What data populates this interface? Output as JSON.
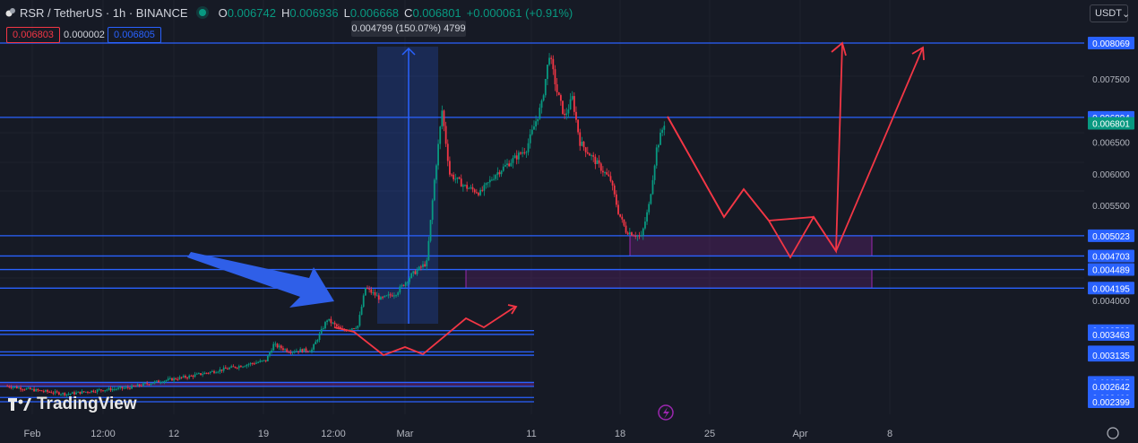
{
  "header": {
    "symbol": "RSR / TetherUS · 1h · BINANCE",
    "open_label": "O",
    "open": "0.006742",
    "high_label": "H",
    "high": "0.006936",
    "low_label": "L",
    "low": "0.006668",
    "close_label": "C",
    "close": "0.006801",
    "change": "+0.000061 (+0.91%)"
  },
  "bid_price": "0.006803",
  "spread": "0.000002",
  "ask_price": "0.006805",
  "measure_label": "0.004799 (150.07%) 4799",
  "currency_selector": "USDT",
  "logo_text": "TradingView",
  "colors": {
    "background": "#161a25",
    "up": "#089981",
    "down": "#f23645",
    "line": "#2962ff",
    "projection": "#f23645",
    "zone": "#9c27b0"
  },
  "chart_data": {
    "type": "candlestick",
    "symbol": "RSR/USDT",
    "interval": "1h",
    "exchange": "BINANCE",
    "x_ticks": [
      "Feb",
      "12:00",
      "12",
      "19",
      "12:00",
      "Mar",
      "11",
      "18",
      "25",
      "Apr",
      "8"
    ],
    "y_ticks": [
      "0.007500",
      "0.006500",
      "0.006000",
      "0.005500",
      "0.004000"
    ],
    "last_price": "0.006801",
    "horizontal_levels": [
      {
        "label": "0.008069",
        "value": 0.008069
      },
      {
        "label": "0.006894",
        "value": 0.006894
      },
      {
        "label": "0.005023",
        "value": 0.005023
      },
      {
        "label": "0.004703",
        "value": 0.004703
      },
      {
        "label": "0.004489",
        "value": 0.004489
      },
      {
        "label": "0.004195",
        "value": 0.004195
      },
      {
        "label": "0.003523",
        "value": 0.003523
      },
      {
        "label": "0.003463",
        "value": 0.003463
      },
      {
        "label": "0.003188",
        "value": 0.003188
      },
      {
        "label": "0.003135",
        "value": 0.003135
      },
      {
        "label": "0.002705",
        "value": 0.002705
      },
      {
        "label": "0.002642",
        "value": 0.002642
      },
      {
        "label": "0.002466",
        "value": 0.002466
      },
      {
        "label": "0.002399",
        "value": 0.002399
      }
    ],
    "price_path": [
      [
        0,
        0.00265
      ],
      [
        4,
        0.00258
      ],
      [
        8,
        0.00252
      ],
      [
        12,
        0.00258
      ],
      [
        16,
        0.00262
      ],
      [
        20,
        0.00272
      ],
      [
        24,
        0.0028
      ],
      [
        28,
        0.0029
      ],
      [
        32,
        0.003
      ],
      [
        34,
        0.00305
      ],
      [
        35,
        0.0033
      ],
      [
        37,
        0.0032
      ],
      [
        40,
        0.00322
      ],
      [
        42,
        0.0037
      ],
      [
        44,
        0.00352
      ],
      [
        46,
        0.0036
      ],
      [
        47,
        0.0042
      ],
      [
        49,
        0.00402
      ],
      [
        51,
        0.00412
      ],
      [
        53,
        0.0044
      ],
      [
        55,
        0.0046
      ],
      [
        56,
        0.0059
      ],
      [
        57,
        0.007
      ],
      [
        58,
        0.006
      ],
      [
        60,
        0.0058
      ],
      [
        62,
        0.0057
      ],
      [
        64,
        0.006
      ],
      [
        66,
        0.0062
      ],
      [
        68,
        0.0064
      ],
      [
        70,
        0.0071
      ],
      [
        71,
        0.0079
      ],
      [
        72,
        0.0073
      ],
      [
        73,
        0.0069
      ],
      [
        74,
        0.0072
      ],
      [
        75,
        0.0065
      ],
      [
        77,
        0.0062
      ],
      [
        79,
        0.0059
      ],
      [
        80,
        0.0054
      ],
      [
        81,
        0.0051
      ],
      [
        83,
        0.005
      ],
      [
        84,
        0.0055
      ],
      [
        85,
        0.0064
      ],
      [
        86,
        0.0068
      ]
    ]
  }
}
